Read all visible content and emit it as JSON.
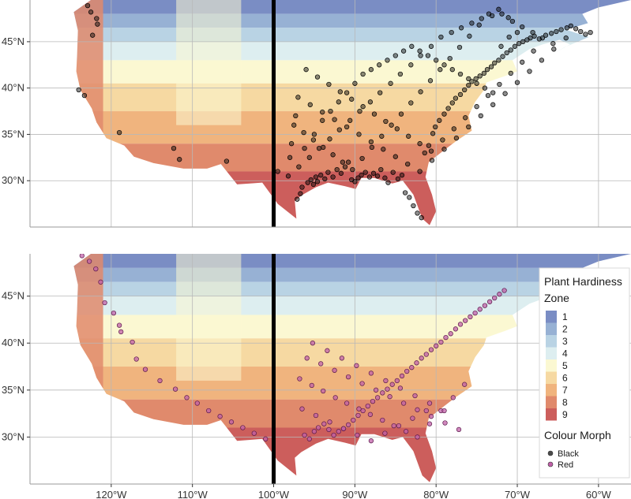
{
  "chart_data": [
    {
      "type": "scatter",
      "title": "",
      "series": [
        {
          "name": "Black",
          "color": "#000000",
          "x": [
            -122.9,
            -122.5,
            -121.8,
            -121.7,
            -122.3,
            -124.0,
            -123.3,
            -119.0,
            -112.3,
            -111.6,
            -105.8,
            -99.5,
            -97.1,
            -96.7,
            -96.5,
            -95.8,
            -95.4,
            -95.1,
            -94.8,
            -94.6,
            -94.2,
            -93.7,
            -93.3,
            -92.7,
            -92.2,
            -91.7,
            -91.2,
            -90.8,
            -90.4,
            -90.0,
            -89.6,
            -89.2,
            -88.7,
            -88.2,
            -87.7,
            -87.2,
            -86.8,
            -86.3,
            -85.9,
            -85.3,
            -84.7,
            -84.2,
            -83.8,
            -83.3,
            -82.8,
            -82.3,
            -81.8,
            -81.4,
            -80.9,
            -80.4,
            -80.1,
            -79.6,
            -79.0,
            -78.5,
            -78.0,
            -77.6,
            -77.0,
            -76.5,
            -76.0,
            -75.6,
            -75.1,
            -74.6,
            -74.1,
            -73.7,
            -73.2,
            -72.8,
            -72.3,
            -71.8,
            -71.3,
            -70.8,
            -70.3,
            -69.8,
            -69.3,
            -68.8,
            -68.4,
            -67.9,
            -67.3,
            -66.5,
            -65.8,
            -65.2,
            -64.6,
            -63.9,
            -63.4,
            -62.8,
            -62.2,
            -61.6,
            -61.0,
            -97.3,
            -97.8,
            -98.0,
            -96.2,
            -95.0,
            -94.0,
            -93.0,
            -92.0,
            -91.0,
            -90.0,
            -89.0,
            -88.0,
            -87.0,
            -86.0,
            -85.0,
            -84.0,
            -83.0,
            -82.0,
            -81.0,
            -80.0,
            -79.0,
            -78.0,
            -77.0,
            -76.0,
            -75.0,
            -74.0,
            -73.0,
            -72.0,
            -71.0,
            -70.0,
            -98.2,
            -96.9,
            -95.6,
            -94.4,
            -93.1,
            -91.9,
            -90.6,
            -89.4,
            -88.1,
            -86.9,
            -85.6,
            -84.4,
            -83.1,
            -81.9,
            -80.6,
            -79.4,
            -78.1,
            -76.9,
            -75.6,
            -74.4,
            -73.1,
            -71.9,
            -70.6,
            -69.4,
            -68.1,
            -66.9,
            -65.6,
            -97.0,
            -95.5,
            -94.0,
            -92.5,
            -91.0,
            -89.5,
            -88.0,
            -86.5,
            -85.0,
            -83.5,
            -82.0,
            -80.5,
            -79.0,
            -77.5,
            -76.0,
            -74.5,
            -73.0,
            -71.5,
            -70.0,
            -68.5,
            -67.0,
            -65.5,
            -64.0,
            -96.0,
            -94.6,
            -93.2,
            -91.8,
            -90.4,
            -89.0,
            -87.6,
            -86.2,
            -84.8,
            -83.4,
            -82.0,
            -80.6,
            -79.2,
            -77.8,
            -76.4,
            -75.0,
            -73.6,
            -72.2,
            -70.8,
            -69.4,
            -68.0,
            -97.5,
            -96.3,
            -95.1,
            -93.9,
            -92.7,
            -91.5,
            -90.3,
            -89.1,
            -87.9,
            -86.7,
            -85.5,
            -84.3,
            -83.1,
            -81.9,
            -80.7,
            -79.5,
            -78.3,
            -77.1,
            -75.9,
            -74.7,
            -73.5,
            -72.3,
            -71.1
          ],
          "y": [
            48.9,
            48.2,
            47.5,
            46.9,
            45.7,
            39.8,
            39.2,
            35.2,
            33.5,
            32.3,
            32.1,
            31.0,
            28.0,
            28.6,
            29.3,
            29.8,
            30.1,
            29.6,
            30.4,
            29.9,
            30.6,
            30.2,
            30.9,
            30.4,
            31.2,
            30.8,
            31.5,
            32.0,
            30.1,
            29.9,
            30.3,
            30.6,
            30.9,
            30.4,
            30.8,
            30.5,
            31.2,
            30.3,
            29.8,
            30.9,
            30.2,
            30.6,
            28.7,
            28.2,
            27.3,
            26.5,
            26.0,
            33.0,
            33.8,
            35.1,
            35.8,
            36.5,
            37.2,
            37.8,
            38.4,
            38.9,
            39.3,
            39.8,
            40.3,
            40.7,
            41.0,
            41.3,
            41.6,
            42.0,
            42.3,
            42.7,
            43.0,
            43.4,
            43.8,
            44.1,
            44.5,
            44.8,
            45.0,
            45.2,
            45.4,
            45.6,
            45.3,
            45.7,
            45.9,
            46.1,
            46.3,
            46.5,
            46.7,
            46.4,
            46.1,
            45.8,
            46.0,
            37.0,
            34.0,
            32.5,
            33.5,
            35.0,
            36.5,
            37.5,
            38.5,
            39.5,
            40.5,
            41.5,
            42.0,
            42.5,
            43.0,
            43.5,
            44.0,
            44.5,
            44.0,
            43.5,
            43.0,
            42.5,
            42.0,
            41.5,
            41.0,
            40.5,
            40.0,
            39.5,
            44.5,
            45.5,
            46.0,
            30.5,
            31.5,
            32.5,
            33.5,
            34.5,
            35.5,
            36.5,
            37.5,
            38.5,
            39.5,
            40.5,
            41.5,
            42.5,
            43.5,
            44.5,
            45.5,
            46.0,
            46.5,
            47.0,
            47.5,
            47.8,
            48.0,
            47.2,
            46.6,
            46.0,
            45.4,
            44.8,
            39.0,
            38.2,
            37.4,
            36.6,
            35.8,
            35.0,
            34.2,
            33.4,
            32.6,
            31.8,
            31.0,
            32.2,
            33.4,
            34.6,
            35.8,
            37.0,
            38.2,
            39.4,
            40.6,
            41.8,
            43.0,
            44.2,
            45.4,
            42.0,
            41.2,
            40.4,
            39.6,
            38.8,
            38.0,
            37.2,
            36.4,
            35.6,
            34.8,
            34.0,
            33.2,
            34.4,
            35.6,
            36.8,
            38.0,
            39.2,
            40.4,
            41.6,
            42.8,
            44.0,
            36.0,
            35.2,
            34.4,
            33.6,
            32.8,
            32.0,
            31.2,
            32.4,
            33.6,
            34.8,
            36.0,
            37.2,
            38.4,
            39.6,
            40.8,
            42.0,
            43.2,
            44.4,
            45.6,
            46.8,
            48.0,
            48.5,
            47.6
          ]
        }
      ],
      "xlim": [
        -130,
        -56
      ],
      "ylim": [
        25,
        49.5
      ],
      "xticks": [
        -120,
        -110,
        -100,
        -90,
        -80,
        -70,
        -60
      ],
      "yticks": [
        30,
        35,
        40,
        45
      ],
      "yticklabels": [
        "30°N",
        "35°N",
        "40°N",
        "45°N"
      ],
      "grid": true,
      "reference_line_x": -100
    },
    {
      "type": "scatter",
      "title": "",
      "series": [
        {
          "name": "Red",
          "color": "#c060a8",
          "x": [
            -123.6,
            -122.7,
            -121.9,
            -121.3,
            -120.8,
            -119.7,
            -119.0,
            -118.8,
            -117.4,
            -116.9,
            -115.8,
            -114.0,
            -112.1,
            -110.7,
            -109.4,
            -108.0,
            -106.6,
            -105.2,
            -103.8,
            -102.4,
            -101.0,
            -96.2,
            -95.6,
            -95.0,
            -94.5,
            -93.8,
            -93.2,
            -92.6,
            -92.0,
            -91.4,
            -90.8,
            -90.2,
            -89.6,
            -89.0,
            -88.4,
            -87.8,
            -87.2,
            -86.6,
            -86.0,
            -85.4,
            -84.8,
            -84.2,
            -83.6,
            -83.0,
            -82.4,
            -81.8,
            -81.2,
            -80.6,
            -80.0,
            -79.4,
            -78.8,
            -78.2,
            -77.6,
            -77.0,
            -76.4,
            -75.8,
            -75.2,
            -74.6,
            -74.0,
            -73.4,
            -72.8,
            -72.2,
            -71.6,
            -96.8,
            -95.3,
            -93.9,
            -92.4,
            -91.0,
            -89.5,
            -88.1,
            -86.6,
            -85.2,
            -83.7,
            -82.3,
            -80.8,
            -79.4,
            -77.9,
            -76.5,
            -95.9,
            -94.2,
            -92.5,
            -90.8,
            -89.1,
            -87.4,
            -85.7,
            -84.0,
            -82.3,
            -80.6,
            -78.9,
            -77.2,
            -95.2,
            -93.4,
            -91.6,
            -89.8,
            -88.0,
            -86.2,
            -84.4,
            -82.6,
            -80.8,
            -79.0,
            -96.5,
            -94.8,
            -93.1,
            -91.4,
            -89.7,
            -88.0,
            -86.3,
            -84.6,
            -82.9,
            -81.2
          ],
          "y": [
            49.3,
            48.7,
            47.9,
            46.5,
            44.3,
            43.2,
            41.9,
            41.2,
            40.1,
            38.3,
            37.2,
            36.0,
            35.1,
            34.2,
            33.6,
            32.8,
            32.2,
            31.6,
            31.0,
            30.4,
            29.8,
            30.2,
            29.8,
            30.6,
            31.0,
            31.4,
            30.8,
            30.2,
            30.6,
            30.9,
            31.3,
            31.8,
            32.3,
            32.8,
            33.3,
            33.8,
            34.2,
            34.7,
            35.1,
            35.6,
            36.0,
            36.5,
            37.0,
            37.4,
            37.9,
            38.4,
            38.8,
            39.3,
            39.7,
            40.1,
            40.6,
            41.0,
            41.5,
            42.0,
            42.4,
            42.8,
            43.2,
            43.6,
            44.0,
            44.4,
            44.8,
            45.2,
            45.6,
            36.2,
            35.5,
            34.9,
            34.2,
            33.6,
            33.0,
            32.4,
            31.8,
            31.2,
            30.6,
            30.0,
            31.4,
            32.8,
            34.2,
            35.6,
            38.4,
            37.8,
            37.1,
            36.4,
            35.7,
            35.0,
            34.3,
            33.6,
            32.9,
            32.2,
            31.5,
            30.8,
            40.0,
            39.2,
            38.4,
            37.6,
            36.8,
            36.0,
            35.2,
            34.4,
            33.6,
            32.8,
            33.0,
            32.3,
            31.6,
            30.9,
            30.2,
            29.6,
            30.4,
            31.2,
            32.0,
            32.8
          ]
        }
      ],
      "xlim": [
        -130,
        -56
      ],
      "ylim": [
        25,
        49.5
      ],
      "xticks": [
        -120,
        -110,
        -100,
        -90,
        -80,
        -70,
        -60
      ],
      "xticklabels": [
        "120°W",
        "110°W",
        "100°W",
        "90°W",
        "80°W",
        "70°W",
        "60°W"
      ],
      "yticks": [
        30,
        35,
        40,
        45
      ],
      "yticklabels": [
        "30°N",
        "35°N",
        "40°N",
        "45°N"
      ],
      "grid": true,
      "reference_line_x": -100
    }
  ],
  "legend": {
    "zone_title": [
      "Plant Hardiness",
      "Zone"
    ],
    "zones": [
      {
        "label": "1",
        "color": "#7a8dc4"
      },
      {
        "label": "2",
        "color": "#97b1d4"
      },
      {
        "label": "3",
        "color": "#b9d3e4"
      },
      {
        "label": "4",
        "color": "#ddeef0"
      },
      {
        "label": "5",
        "color": "#fbf8d2"
      },
      {
        "label": "6",
        "color": "#f6d9a2"
      },
      {
        "label": "7",
        "color": "#f0b47e"
      },
      {
        "label": "8",
        "color": "#e08a6c"
      },
      {
        "label": "9",
        "color": "#cc5e5c"
      }
    ],
    "morph_title": "Colour Morph",
    "morphs": [
      {
        "label": "Black",
        "color": "#4a4a4a"
      },
      {
        "label": "Red",
        "color": "#c060a8"
      }
    ],
    "placement": "right"
  }
}
